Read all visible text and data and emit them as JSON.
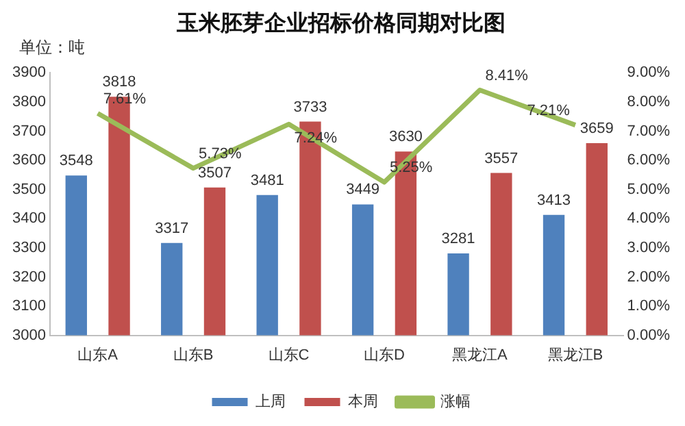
{
  "chart_data": {
    "type": "bar",
    "title": "玉米胚芽企业招标价格同期对比图",
    "ylabel": "单位：吨",
    "categories": [
      "山东A",
      "山东B",
      "山东C",
      "山东D",
      "黑龙江A",
      "黑龙江B"
    ],
    "series": [
      {
        "name": "上周",
        "color": "#4f81bd",
        "values": [
          3548,
          3317,
          3481,
          3449,
          3281,
          3413
        ]
      },
      {
        "name": "本周",
        "color": "#c0504d",
        "values": [
          3818,
          3507,
          3733,
          3630,
          3557,
          3659
        ]
      },
      {
        "name": "涨幅",
        "type": "line",
        "axis": "y2",
        "color": "#9bbb59",
        "values": [
          7.61,
          5.73,
          7.24,
          5.25,
          8.41,
          7.21
        ],
        "value_labels": [
          "7.61%",
          "5.73%",
          "7.24%",
          "5.25%",
          "8.41%",
          "7.21%"
        ]
      }
    ],
    "ylim": [
      3000,
      3900
    ],
    "yticks": [
      3000,
      3100,
      3200,
      3300,
      3400,
      3500,
      3600,
      3700,
      3800,
      3900
    ],
    "y2lim": [
      0,
      9
    ],
    "y2ticks": [
      {
        "value": 0,
        "label": "0.00%"
      },
      {
        "value": 1,
        "label": "1.00%"
      },
      {
        "value": 2,
        "label": "2.00%"
      },
      {
        "value": 3,
        "label": "3.00%"
      },
      {
        "value": 4,
        "label": "4.00%"
      },
      {
        "value": 5,
        "label": "5.00%"
      },
      {
        "value": 6,
        "label": "6.00%"
      },
      {
        "value": 7,
        "label": "7.00%"
      },
      {
        "value": 8,
        "label": "8.00%"
      },
      {
        "value": 9,
        "label": "9.00%"
      }
    ],
    "data_labels": true,
    "grid": false,
    "legend": "bottom",
    "marker": "none",
    "line_style": "solid"
  }
}
